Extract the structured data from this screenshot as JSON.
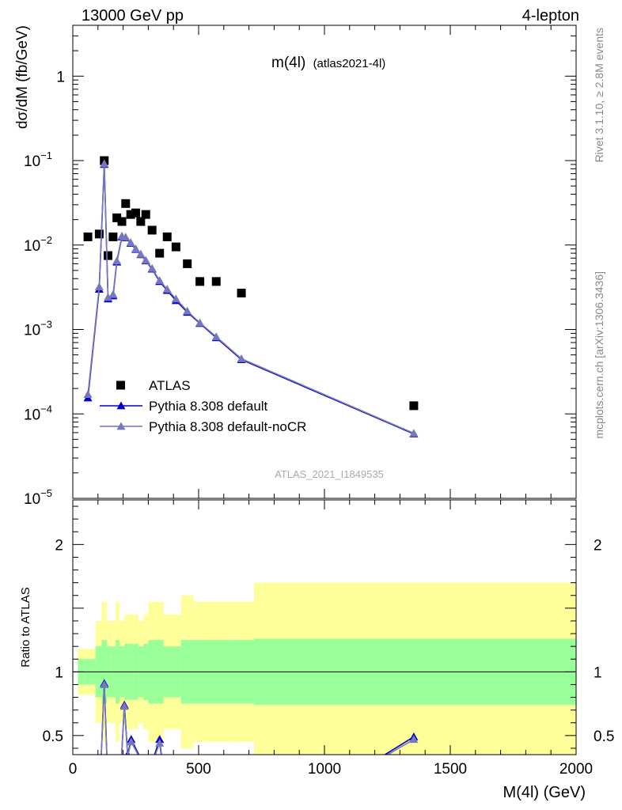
{
  "header": {
    "left": "13000 GeV pp",
    "right": "4-lepton"
  },
  "side_labels": {
    "top": "Rivet 3.1.10, ≥ 2.8M events",
    "bottom": "mcplots.cern.ch [arXiv:1306.3436]"
  },
  "chart_data": [
    {
      "type": "scatter",
      "title_main": "m(4l)",
      "title_sub": "(atlas2021-4l)",
      "ylabel": "dσ/dM (fb/GeV)",
      "analysis": "ATLAS_2021_I1849535",
      "xlim": [
        0,
        2000
      ],
      "ylim": [
        1e-05,
        4
      ],
      "ylog": true,
      "y_ticks": [
        {
          "value": 1e-05,
          "base": "10",
          "exp": "−5"
        },
        {
          "value": 0.0001,
          "base": "10",
          "exp": "−4"
        },
        {
          "value": 0.001,
          "base": "10",
          "exp": "−3"
        },
        {
          "value": 0.01,
          "base": "10",
          "exp": "−2"
        },
        {
          "value": 0.1,
          "base": "10",
          "exp": "−1"
        },
        {
          "value": 1,
          "base": "1",
          "exp": ""
        }
      ],
      "legend_position": "lower-left",
      "series": [
        {
          "name": "ATLAS",
          "marker": "square",
          "color": "#000000",
          "x": [
            60,
            105,
            125,
            140,
            160,
            175,
            195,
            210,
            230,
            250,
            270,
            290,
            315,
            345,
            375,
            410,
            455,
            505,
            570,
            670,
            1355
          ],
          "y": [
            0.0125,
            0.0135,
            0.1,
            0.0075,
            0.0125,
            0.021,
            0.019,
            0.031,
            0.023,
            0.024,
            0.019,
            0.023,
            0.015,
            0.008,
            0.0125,
            0.0095,
            0.006,
            0.0037,
            0.0037,
            0.0027,
            0.000125
          ]
        },
        {
          "name": "Pythia 8.308 default",
          "marker": "triangle",
          "color": "#0000cc",
          "x": [
            60,
            105,
            125,
            140,
            160,
            175,
            195,
            210,
            230,
            250,
            270,
            290,
            315,
            345,
            375,
            410,
            455,
            505,
            570,
            670,
            1355
          ],
          "y": [
            0.000155,
            0.003,
            0.09,
            0.0023,
            0.0025,
            0.0063,
            0.0125,
            0.0122,
            0.0105,
            0.0089,
            0.0077,
            0.0065,
            0.0052,
            0.0037,
            0.0029,
            0.0022,
            0.0016,
            0.00118,
            0.0008,
            0.00044,
            5.8e-05
          ]
        },
        {
          "name": "Pythia 8.308 default-noCR",
          "marker": "triangle",
          "color": "#7777bb",
          "x": [
            60,
            105,
            125,
            140,
            160,
            175,
            195,
            210,
            230,
            250,
            270,
            290,
            315,
            345,
            375,
            410,
            455,
            505,
            570,
            670,
            1355
          ],
          "y": [
            0.00017,
            0.0032,
            0.092,
            0.0024,
            0.0026,
            0.0065,
            0.0128,
            0.0124,
            0.0107,
            0.009,
            0.0078,
            0.0066,
            0.0053,
            0.0038,
            0.003,
            0.0023,
            0.00165,
            0.0012,
            0.00082,
            0.00045,
            5.9e-05
          ]
        }
      ]
    },
    {
      "type": "line",
      "ylabel": "Ratio to ATLAS",
      "xlabel": "M(4l) (GeV)",
      "xlim": [
        0,
        2000
      ],
      "ylim": [
        0.35,
        2.35
      ],
      "x_ticks": [
        "0",
        "500",
        "1000",
        "1500",
        "2000"
      ],
      "x_tick_values": [
        0,
        500,
        1000,
        1500,
        2000
      ],
      "y_ticks": [
        "0.5",
        "1",
        "2"
      ],
      "y_tick_values": [
        0.5,
        1,
        2
      ],
      "bands": {
        "edges": [
          20,
          90,
          115,
          135,
          150,
          170,
          185,
          205,
          220,
          240,
          260,
          280,
          300,
          330,
          360,
          390,
          430,
          480,
          530,
          620,
          720,
          2000
        ],
        "inner_color": "#99ff99",
        "outer_color": "#ffff99",
        "inner_lo": [
          0.9,
          0.8,
          0.75,
          0.8,
          0.8,
          0.75,
          0.8,
          0.78,
          0.78,
          0.78,
          0.8,
          0.78,
          0.75,
          0.75,
          0.8,
          0.8,
          0.75,
          0.75,
          0.75,
          0.75,
          0.74
        ],
        "inner_hi": [
          1.1,
          1.2,
          1.25,
          1.2,
          1.2,
          1.25,
          1.2,
          1.22,
          1.22,
          1.22,
          1.2,
          1.22,
          1.25,
          1.25,
          1.2,
          1.2,
          1.25,
          1.25,
          1.25,
          1.25,
          1.26
        ],
        "outer_lo": [
          0.82,
          0.6,
          0.45,
          0.6,
          0.6,
          0.45,
          0.6,
          0.55,
          0.55,
          0.55,
          0.6,
          0.55,
          0.45,
          0.45,
          0.55,
          0.55,
          0.4,
          0.45,
          0.45,
          0.45,
          0.3
        ],
        "outer_hi": [
          1.18,
          1.4,
          1.55,
          1.4,
          1.4,
          1.55,
          1.4,
          1.45,
          1.45,
          1.45,
          1.4,
          1.45,
          1.55,
          1.55,
          1.45,
          1.45,
          1.6,
          1.55,
          1.55,
          1.55,
          1.7
        ]
      },
      "series": [
        {
          "name": "Pythia 8.308 default",
          "color": "#0000cc",
          "x": [
            110,
            125,
            138,
            190,
            205,
            218,
            232,
            300,
            345,
            360,
            1200,
            1355
          ],
          "y": [
            0.2,
            0.91,
            0.2,
            0.2,
            0.74,
            0.35,
            0.47,
            0.2,
            0.47,
            0.2,
            0.3,
            0.49
          ]
        },
        {
          "name": "Pythia 8.308 default-noCR",
          "color": "#7777bb",
          "x": [
            110,
            125,
            138,
            190,
            205,
            218,
            232,
            300,
            345,
            360,
            1200,
            1355
          ],
          "y": [
            0.2,
            0.9,
            0.2,
            0.2,
            0.73,
            0.34,
            0.45,
            0.2,
            0.44,
            0.2,
            0.29,
            0.47
          ]
        }
      ]
    }
  ]
}
